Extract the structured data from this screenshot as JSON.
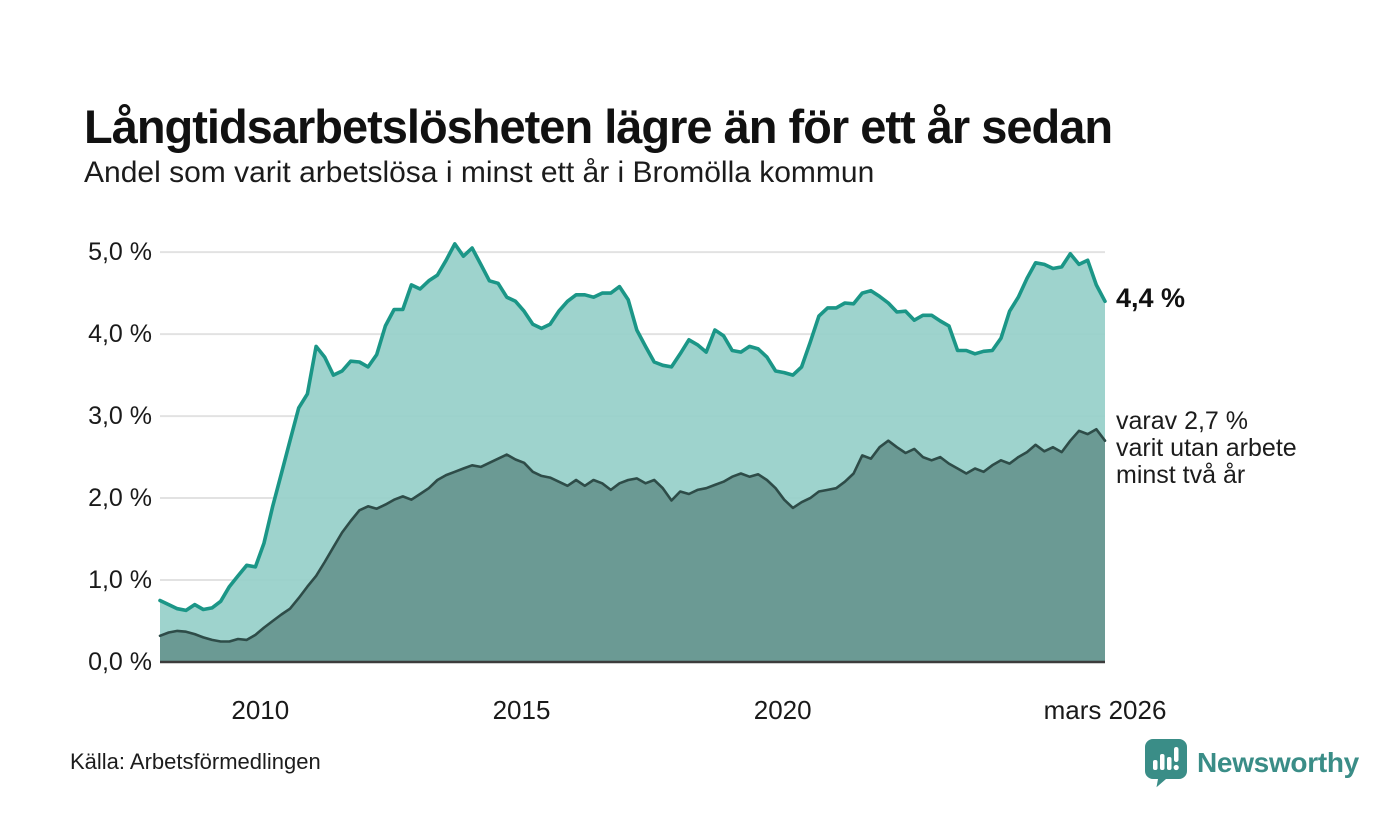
{
  "header": {
    "title": "Långtidsarbetslösheten lägre än för ett år sedan",
    "subtitle": "Andel som varit arbetslösa i minst ett år i Bromölla kommun"
  },
  "annotations": {
    "latest_total": "4,4 %",
    "subset_lines": [
      "varav 2,7 %",
      "varit utan arbete",
      "minst två år"
    ]
  },
  "footer": {
    "source": "Källa: Arbetsförmedlingen",
    "brand": "Newsworthy"
  },
  "colors": {
    "accent_teal_line": "#1b9687",
    "light_area_fill": "#97d0c9",
    "dark_slate_line": "#2e4c48",
    "dark_area_fill": "#67968f",
    "gridline": "#e2e2e2",
    "axis_baseline": "#3c3c3c",
    "text": "#1a1a1a",
    "brand_teal": "#3a8d87"
  },
  "chart_data": {
    "type": "area",
    "title": "Långtidsarbetslösheten lägre än för ett år sedan",
    "subtitle": "Andel som varit arbetslösa i minst ett år i Bromölla kommun",
    "unit": "%",
    "x_range": {
      "start": 2008.08,
      "end": 2026.17,
      "step_years": 0.1667
    },
    "ylim": [
      0,
      5.27
    ],
    "grid": "horizontal",
    "y_tick_labels": [
      "5,0 %",
      "4,0 %",
      "3,0 %",
      "2,0 %",
      "1,0 %",
      "0,0 %"
    ],
    "y_tick_values": [
      5.0,
      4.0,
      3.0,
      2.0,
      1.0,
      0.0
    ],
    "x_ticks": [
      {
        "year": 2010,
        "label": "2010"
      },
      {
        "year": 2015,
        "label": "2015"
      },
      {
        "year": 2020,
        "label": "2020"
      },
      {
        "year": 2026.17,
        "label": "mars 2026"
      }
    ],
    "latest": {
      "unemployed_min_one_year_pct": 4.4,
      "unemployed_min_two_years_pct": 2.7,
      "latest_period": "mars 2026"
    },
    "series": [
      {
        "name": "Arbetslösa minst ett år",
        "line_color": "#1b9687",
        "fill_color": "#97d0c9",
        "values": [
          0.75,
          0.7,
          0.65,
          0.63,
          0.7,
          0.64,
          0.66,
          0.74,
          0.92,
          1.05,
          1.18,
          1.16,
          1.45,
          1.9,
          2.3,
          2.7,
          3.1,
          3.27,
          3.85,
          3.72,
          3.5,
          3.55,
          3.67,
          3.66,
          3.6,
          3.75,
          4.1,
          4.3,
          4.3,
          4.6,
          4.55,
          4.65,
          4.72,
          4.9,
          5.1,
          4.95,
          5.05,
          4.85,
          4.65,
          4.62,
          4.45,
          4.4,
          4.28,
          4.12,
          4.07,
          4.12,
          4.28,
          4.4,
          4.48,
          4.48,
          4.45,
          4.5,
          4.5,
          4.58,
          4.42,
          4.05,
          3.85,
          3.66,
          3.62,
          3.6,
          3.76,
          3.93,
          3.87,
          3.78,
          4.05,
          3.98,
          3.8,
          3.78,
          3.85,
          3.82,
          3.72,
          3.55,
          3.53,
          3.5,
          3.6,
          3.9,
          4.22,
          4.32,
          4.32,
          4.38,
          4.37,
          4.5,
          4.53,
          4.46,
          4.38,
          4.27,
          4.28,
          4.17,
          4.23,
          4.23,
          4.16,
          4.1,
          3.8,
          3.8,
          3.76,
          3.79,
          3.8,
          3.95,
          4.28,
          4.45,
          4.68,
          4.87,
          4.85,
          4.8,
          4.82,
          4.98,
          4.85,
          4.9,
          4.6,
          4.4
        ]
      },
      {
        "name": "varav arbetslösa minst två år",
        "line_color": "#2e4c48",
        "fill_color": "#67968f",
        "values": [
          0.32,
          0.36,
          0.38,
          0.37,
          0.34,
          0.3,
          0.27,
          0.25,
          0.25,
          0.28,
          0.27,
          0.33,
          0.42,
          0.5,
          0.58,
          0.65,
          0.78,
          0.92,
          1.05,
          1.22,
          1.4,
          1.58,
          1.72,
          1.85,
          1.9,
          1.87,
          1.92,
          1.98,
          2.02,
          1.98,
          2.05,
          2.12,
          2.22,
          2.28,
          2.32,
          2.36,
          2.4,
          2.38,
          2.43,
          2.48,
          2.53,
          2.47,
          2.43,
          2.32,
          2.27,
          2.25,
          2.2,
          2.15,
          2.22,
          2.15,
          2.22,
          2.18,
          2.1,
          2.18,
          2.22,
          2.24,
          2.18,
          2.22,
          2.12,
          1.97,
          2.08,
          2.05,
          2.1,
          2.12,
          2.16,
          2.2,
          2.26,
          2.3,
          2.26,
          2.29,
          2.22,
          2.12,
          1.98,
          1.88,
          1.95,
          2.0,
          2.08,
          2.1,
          2.12,
          2.2,
          2.3,
          2.52,
          2.48,
          2.62,
          2.7,
          2.62,
          2.55,
          2.6,
          2.5,
          2.46,
          2.5,
          2.42,
          2.36,
          2.3,
          2.36,
          2.32,
          2.4,
          2.46,
          2.42,
          2.5,
          2.56,
          2.65,
          2.57,
          2.62,
          2.56,
          2.7,
          2.82,
          2.78,
          2.84,
          2.7
        ]
      }
    ]
  }
}
